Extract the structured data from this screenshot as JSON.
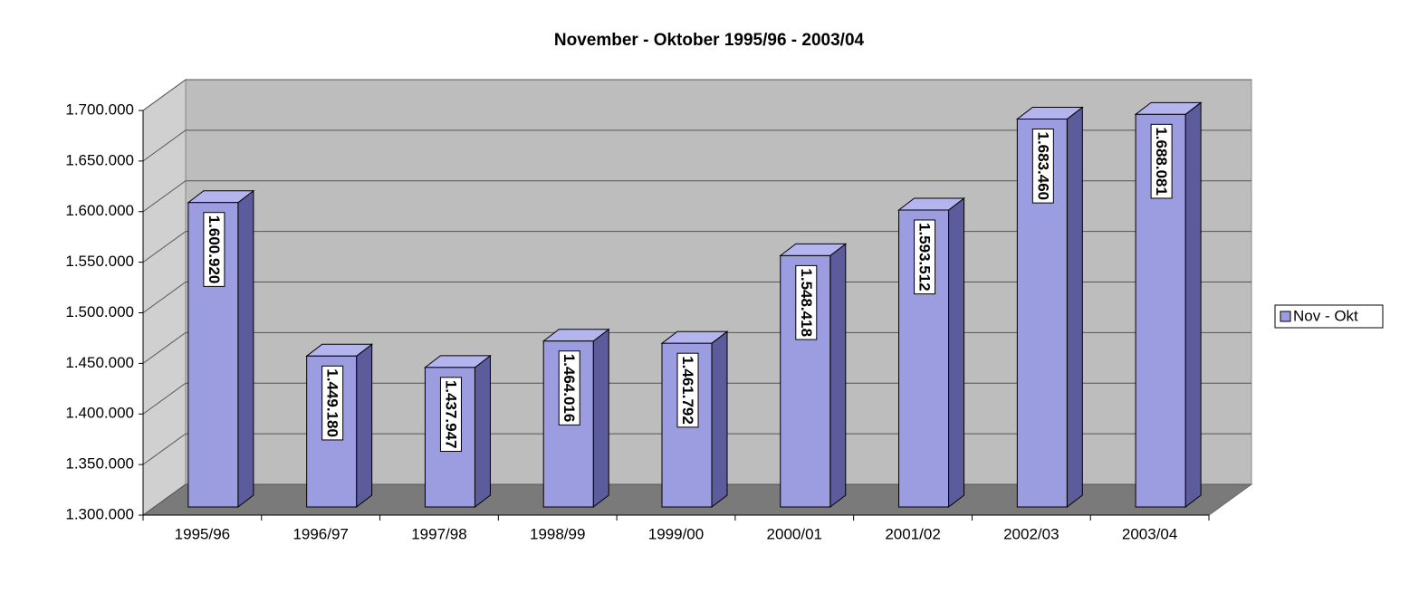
{
  "chart_data": {
    "type": "bar3d",
    "title": "November - Oktober 1995/96 - 2003/04",
    "categories": [
      "1995/96",
      "1996/97",
      "1997/98",
      "1998/99",
      "1999/00",
      "2000/01",
      "2001/02",
      "2002/03",
      "2003/04"
    ],
    "series": [
      {
        "name": "Nov - Okt",
        "color": "#9c9ce0",
        "values": [
          1600920,
          1449180,
          1437947,
          1464016,
          1461792,
          1548418,
          1593512,
          1683460,
          1688081
        ],
        "value_labels": [
          "1.600.920",
          "1.449.180",
          "1.437.947",
          "1.464.016",
          "1.461.792",
          "1.548.418",
          "1.593.512",
          "1.683.460",
          "1.688.081"
        ]
      }
    ],
    "ylim": [
      1300000,
      1700000
    ],
    "yticks": [
      {
        "value": 1300000,
        "label": "1.300.000"
      },
      {
        "value": 1350000,
        "label": "1.350.000"
      },
      {
        "value": 1400000,
        "label": "1.400.000"
      },
      {
        "value": 1450000,
        "label": "1.450.000"
      },
      {
        "value": 1500000,
        "label": "1.500.000"
      },
      {
        "value": 1550000,
        "label": "1.550.000"
      },
      {
        "value": 1600000,
        "label": "1.600.000"
      },
      {
        "value": 1650000,
        "label": "1.650.000"
      },
      {
        "value": 1700000,
        "label": "1.700.000"
      }
    ],
    "grid": true,
    "legend": "right"
  }
}
